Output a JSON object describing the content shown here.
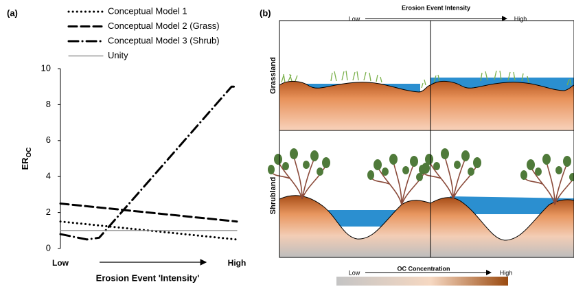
{
  "chart_data": {
    "type": "line",
    "label": "(a)",
    "xlabel": "Erosion Event 'Intensity'",
    "ylabel": "ER",
    "ylabel_sub": "OC",
    "x": [
      0,
      0.15,
      0.22,
      0.97,
      1
    ],
    "xlim": [
      0,
      1
    ],
    "xticks": [
      {
        "value": 0,
        "label": "Low"
      },
      {
        "value": 1,
        "label": "High"
      }
    ],
    "ylim": [
      0,
      10
    ],
    "yticks": [
      0,
      2,
      4,
      6,
      8,
      10
    ],
    "series": [
      {
        "name": "Conceptual Model 1",
        "color": "#000000",
        "dash": "dotted",
        "values": [
          1.5,
          1.35,
          1.28,
          0.53,
          0.5
        ]
      },
      {
        "name": "Conceptual Model 2 (Grass)",
        "color": "#000000",
        "dash": "dashed",
        "values": [
          2.5,
          2.35,
          2.28,
          1.53,
          1.5
        ]
      },
      {
        "name": "Conceptual Model 3 (Shrub)",
        "color": "#000000",
        "dash": "dashdot",
        "values": [
          0.8,
          0.5,
          0.6,
          9,
          9
        ]
      },
      {
        "name": "Unity",
        "color": "#808080",
        "dash": "solid",
        "values": [
          1,
          1,
          1,
          1,
          1
        ]
      }
    ]
  },
  "panel_b": {
    "label": "(b)",
    "top_axis": {
      "title": "Erosion Event Intensity",
      "low": "Low",
      "high": "High"
    },
    "rows": [
      "Grassland",
      "Shrubland"
    ],
    "scale": {
      "title": "OC Concentration",
      "low": "Low",
      "high": "High"
    }
  }
}
